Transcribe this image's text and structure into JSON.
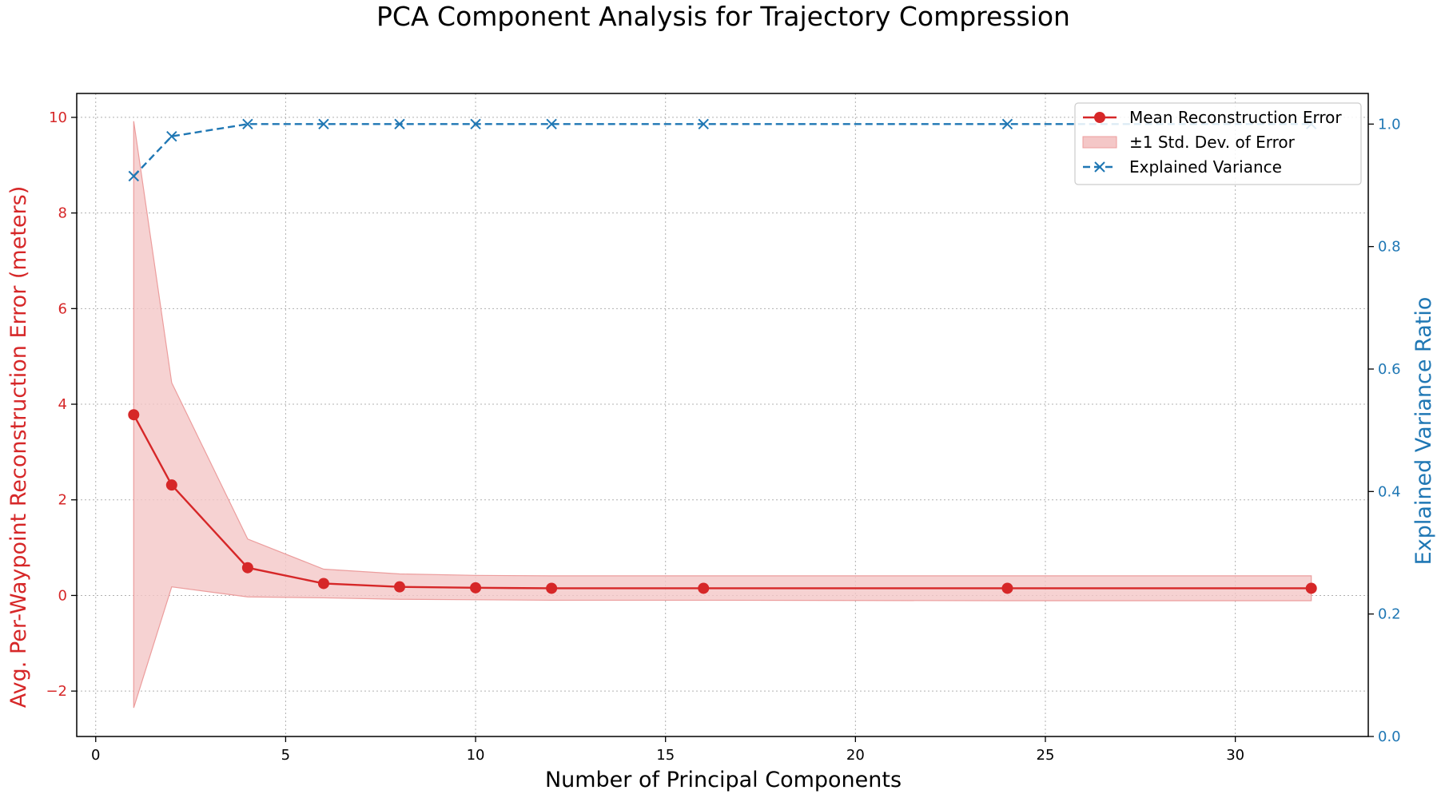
{
  "chart_data": {
    "type": "line",
    "title": "PCA Component Analysis for Trajectory Compression",
    "xlabel": "Number of Principal Components",
    "ylabel_left": "Avg. Per-Waypoint Reconstruction Error (meters)",
    "ylabel_right": "Explained Variance Ratio",
    "xlim": [
      -0.5,
      33.5
    ],
    "ylim_left": [
      -2.95,
      10.5
    ],
    "ylim_right": [
      0.0,
      1.05
    ],
    "x_ticks": [
      0,
      5,
      10,
      15,
      20,
      25,
      30
    ],
    "y_left_ticks": [
      -2,
      0,
      2,
      4,
      6,
      8,
      10
    ],
    "y_right_ticks": [
      "0.0",
      "0.2",
      "0.4",
      "0.6",
      "0.8",
      "1.0"
    ],
    "grid": true,
    "legend_position": "top-right",
    "x": [
      1,
      2,
      4,
      6,
      8,
      10,
      12,
      16,
      24,
      32
    ],
    "series": [
      {
        "name": "Mean Reconstruction Error",
        "axis": "left",
        "color": "#d62728",
        "marker": "circle",
        "values": [
          3.78,
          2.31,
          0.58,
          0.25,
          0.18,
          0.16,
          0.15,
          0.15,
          0.15,
          0.15
        ]
      },
      {
        "name": "±1 Std. Dev. of Error",
        "axis": "left",
        "color": "#d62728",
        "kind": "band",
        "lower": [
          -2.35,
          0.18,
          -0.03,
          -0.05,
          -0.08,
          -0.09,
          -0.1,
          -0.1,
          -0.11,
          -0.11
        ],
        "upper": [
          9.92,
          4.45,
          1.18,
          0.55,
          0.45,
          0.42,
          0.41,
          0.41,
          0.41,
          0.41
        ]
      },
      {
        "name": "Explained Variance",
        "axis": "right",
        "color": "#1f77b4",
        "marker": "x",
        "linestyle": "dashed",
        "values": [
          0.915,
          0.98,
          1.0,
          1.0,
          1.0,
          1.0,
          1.0,
          1.0,
          1.0,
          1.0
        ]
      }
    ]
  },
  "colors": {
    "left_axis": "#d62728",
    "right_axis": "#1f77b4",
    "band_fill": "#f4c7c7"
  }
}
